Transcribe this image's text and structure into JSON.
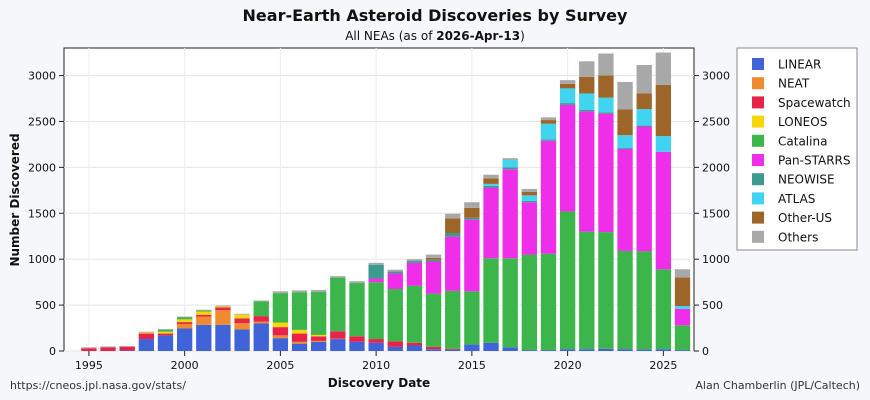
{
  "chart_data": {
    "type": "bar",
    "stacked": true,
    "title": "Near-Earth Asteroid Discoveries by Survey",
    "subtitle_prefix": "All NEAs (as of ",
    "subtitle_date": "2026-Apr-13",
    "subtitle_suffix": ")",
    "xlabel": "Discovery Date",
    "ylabel": "Number Discovered",
    "xlim": [
      1993.7,
      2026.6
    ],
    "ylim": [
      0,
      3300
    ],
    "x_ticks": [
      1995,
      2000,
      2005,
      2010,
      2015,
      2020,
      2025
    ],
    "y_ticks": [
      0,
      500,
      1000,
      1500,
      2000,
      2500,
      3000
    ],
    "grid": true,
    "legend_position": "right",
    "credit_left": "https://cneos.jpl.nasa.gov/stats/",
    "credit_right": "Alan Chamberlin (JPL/Caltech)",
    "categories": [
      1995,
      1996,
      1997,
      1998,
      1999,
      2000,
      2001,
      2002,
      2003,
      2004,
      2005,
      2006,
      2007,
      2008,
      2009,
      2010,
      2011,
      2012,
      2013,
      2014,
      2015,
      2016,
      2017,
      2018,
      2019,
      2020,
      2021,
      2022,
      2023,
      2024,
      2025,
      2026
    ],
    "series": [
      {
        "name": "LINEAR",
        "color": "#4063d8",
        "values": [
          0,
          0,
          5,
          130,
          170,
          245,
          285,
          285,
          235,
          300,
          140,
          80,
          100,
          130,
          100,
          90,
          45,
          60,
          20,
          15,
          70,
          90,
          40,
          10,
          10,
          20,
          20,
          25,
          20,
          15,
          20,
          10
        ]
      },
      {
        "name": "NEAT",
        "color": "#f08a30",
        "values": [
          0,
          0,
          0,
          0,
          0,
          50,
          90,
          160,
          70,
          20,
          30,
          20,
          10,
          5,
          0,
          0,
          0,
          0,
          0,
          0,
          0,
          0,
          0,
          0,
          0,
          0,
          0,
          0,
          0,
          0,
          0,
          0
        ]
      },
      {
        "name": "Spacewatch",
        "color": "#e8234a",
        "values": [
          30,
          40,
          40,
          60,
          20,
          20,
          20,
          30,
          50,
          60,
          90,
          90,
          50,
          80,
          60,
          40,
          60,
          30,
          25,
          10,
          0,
          0,
          0,
          0,
          0,
          0,
          0,
          0,
          0,
          0,
          0,
          0
        ]
      },
      {
        "name": "LONEOS",
        "color": "#f5d80a",
        "values": [
          0,
          0,
          0,
          10,
          20,
          30,
          35,
          10,
          40,
          0,
          50,
          40,
          15,
          0,
          0,
          0,
          0,
          0,
          0,
          0,
          0,
          0,
          0,
          0,
          0,
          0,
          0,
          0,
          0,
          0,
          0,
          0
        ]
      },
      {
        "name": "Catalina",
        "color": "#3cb54a",
        "values": [
          0,
          0,
          0,
          0,
          20,
          20,
          10,
          0,
          0,
          160,
          320,
          410,
          470,
          580,
          580,
          620,
          570,
          620,
          580,
          630,
          580,
          920,
          970,
          1040,
          1050,
          1500,
          1280,
          1270,
          1070,
          1070,
          870,
          270
        ]
      },
      {
        "name": "Pan-STARRS",
        "color": "#ee2ee8",
        "values": [
          0,
          0,
          0,
          0,
          0,
          0,
          0,
          0,
          0,
          0,
          0,
          0,
          0,
          0,
          0,
          40,
          170,
          250,
          350,
          590,
          780,
          770,
          970,
          570,
          1230,
          1160,
          1310,
          1290,
          1110,
          1360,
          1280,
          180
        ]
      },
      {
        "name": "NEOWISE",
        "color": "#3d9a8e",
        "values": [
          0,
          0,
          0,
          0,
          0,
          0,
          0,
          0,
          0,
          0,
          0,
          0,
          0,
          0,
          0,
          150,
          20,
          20,
          20,
          40,
          20,
          20,
          20,
          15,
          15,
          20,
          15,
          15,
          10,
          10,
          0,
          0
        ]
      },
      {
        "name": "ATLAS",
        "color": "#40d4f0",
        "values": [
          0,
          0,
          0,
          0,
          0,
          0,
          0,
          0,
          0,
          0,
          0,
          0,
          0,
          0,
          0,
          0,
          0,
          0,
          0,
          0,
          0,
          20,
          80,
          60,
          170,
          160,
          180,
          160,
          140,
          180,
          170,
          30
        ]
      },
      {
        "name": "Other-US",
        "color": "#9e6528",
        "values": [
          0,
          0,
          0,
          0,
          0,
          0,
          0,
          0,
          0,
          0,
          0,
          0,
          0,
          0,
          0,
          0,
          0,
          0,
          20,
          160,
          110,
          60,
          0,
          40,
          40,
          50,
          180,
          240,
          280,
          170,
          560,
          310
        ]
      },
      {
        "name": "Others",
        "color": "#a8a8a8",
        "values": [
          10,
          10,
          10,
          10,
          10,
          10,
          10,
          10,
          10,
          10,
          20,
          20,
          20,
          20,
          20,
          20,
          20,
          20,
          35,
          50,
          60,
          40,
          20,
          30,
          30,
          40,
          170,
          240,
          300,
          310,
          350,
          90
        ]
      }
    ]
  }
}
